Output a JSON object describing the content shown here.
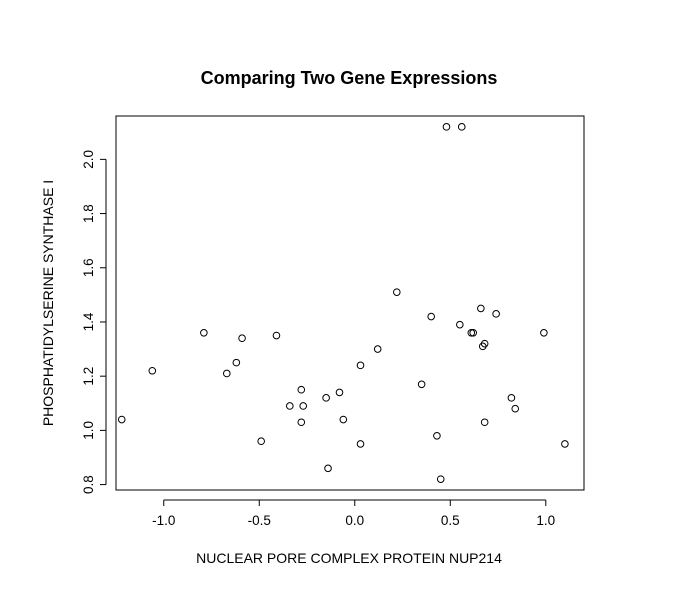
{
  "chart_data": {
    "type": "scatter",
    "title": "Comparing Two Gene Expressions",
    "xlabel": "NUCLEAR PORE COMPLEX PROTEIN NUP214",
    "ylabel": "PHOSPHATIDYLSERINE SYNTHASE I",
    "xlim": [
      -1.25,
      1.2
    ],
    "ylim": [
      0.78,
      2.16
    ],
    "xticks": [
      -1.0,
      -0.5,
      0.0,
      0.5,
      1.0
    ],
    "xtick_labels": [
      "-1.0",
      "-0.5",
      "0.0",
      "0.5",
      "1.0"
    ],
    "yticks": [
      0.8,
      1.0,
      1.2,
      1.4,
      1.6,
      1.8,
      2.0
    ],
    "ytick_labels": [
      "0.8",
      "1.0",
      "1.2",
      "1.4",
      "1.6",
      "1.8",
      "2.0"
    ],
    "grid": false,
    "point_color": "#000000",
    "points": [
      {
        "x": -1.22,
        "y": 1.04
      },
      {
        "x": -1.06,
        "y": 1.22
      },
      {
        "x": -0.79,
        "y": 1.36
      },
      {
        "x": -0.67,
        "y": 1.21
      },
      {
        "x": -0.62,
        "y": 1.25
      },
      {
        "x": -0.59,
        "y": 1.34
      },
      {
        "x": -0.41,
        "y": 1.35
      },
      {
        "x": -0.49,
        "y": 0.96
      },
      {
        "x": -0.34,
        "y": 1.09
      },
      {
        "x": -0.28,
        "y": 1.15
      },
      {
        "x": -0.27,
        "y": 1.09
      },
      {
        "x": -0.28,
        "y": 1.03
      },
      {
        "x": -0.15,
        "y": 1.12
      },
      {
        "x": -0.14,
        "y": 0.86
      },
      {
        "x": -0.08,
        "y": 1.14
      },
      {
        "x": -0.06,
        "y": 1.04
      },
      {
        "x": 0.03,
        "y": 1.24
      },
      {
        "x": 0.03,
        "y": 0.95
      },
      {
        "x": 0.12,
        "y": 1.3
      },
      {
        "x": 0.22,
        "y": 1.51
      },
      {
        "x": 0.35,
        "y": 1.17
      },
      {
        "x": 0.4,
        "y": 1.42
      },
      {
        "x": 0.43,
        "y": 0.98
      },
      {
        "x": 0.45,
        "y": 0.82
      },
      {
        "x": 0.48,
        "y": 2.12
      },
      {
        "x": 0.56,
        "y": 2.12
      },
      {
        "x": 0.55,
        "y": 1.39
      },
      {
        "x": 0.61,
        "y": 1.36
      },
      {
        "x": 0.62,
        "y": 1.36
      },
      {
        "x": 0.66,
        "y": 1.45
      },
      {
        "x": 0.67,
        "y": 1.31
      },
      {
        "x": 0.68,
        "y": 1.32
      },
      {
        "x": 0.68,
        "y": 1.03
      },
      {
        "x": 0.74,
        "y": 1.43
      },
      {
        "x": 0.82,
        "y": 1.12
      },
      {
        "x": 0.84,
        "y": 1.08
      },
      {
        "x": 0.99,
        "y": 1.36
      },
      {
        "x": 1.1,
        "y": 0.95
      }
    ]
  }
}
